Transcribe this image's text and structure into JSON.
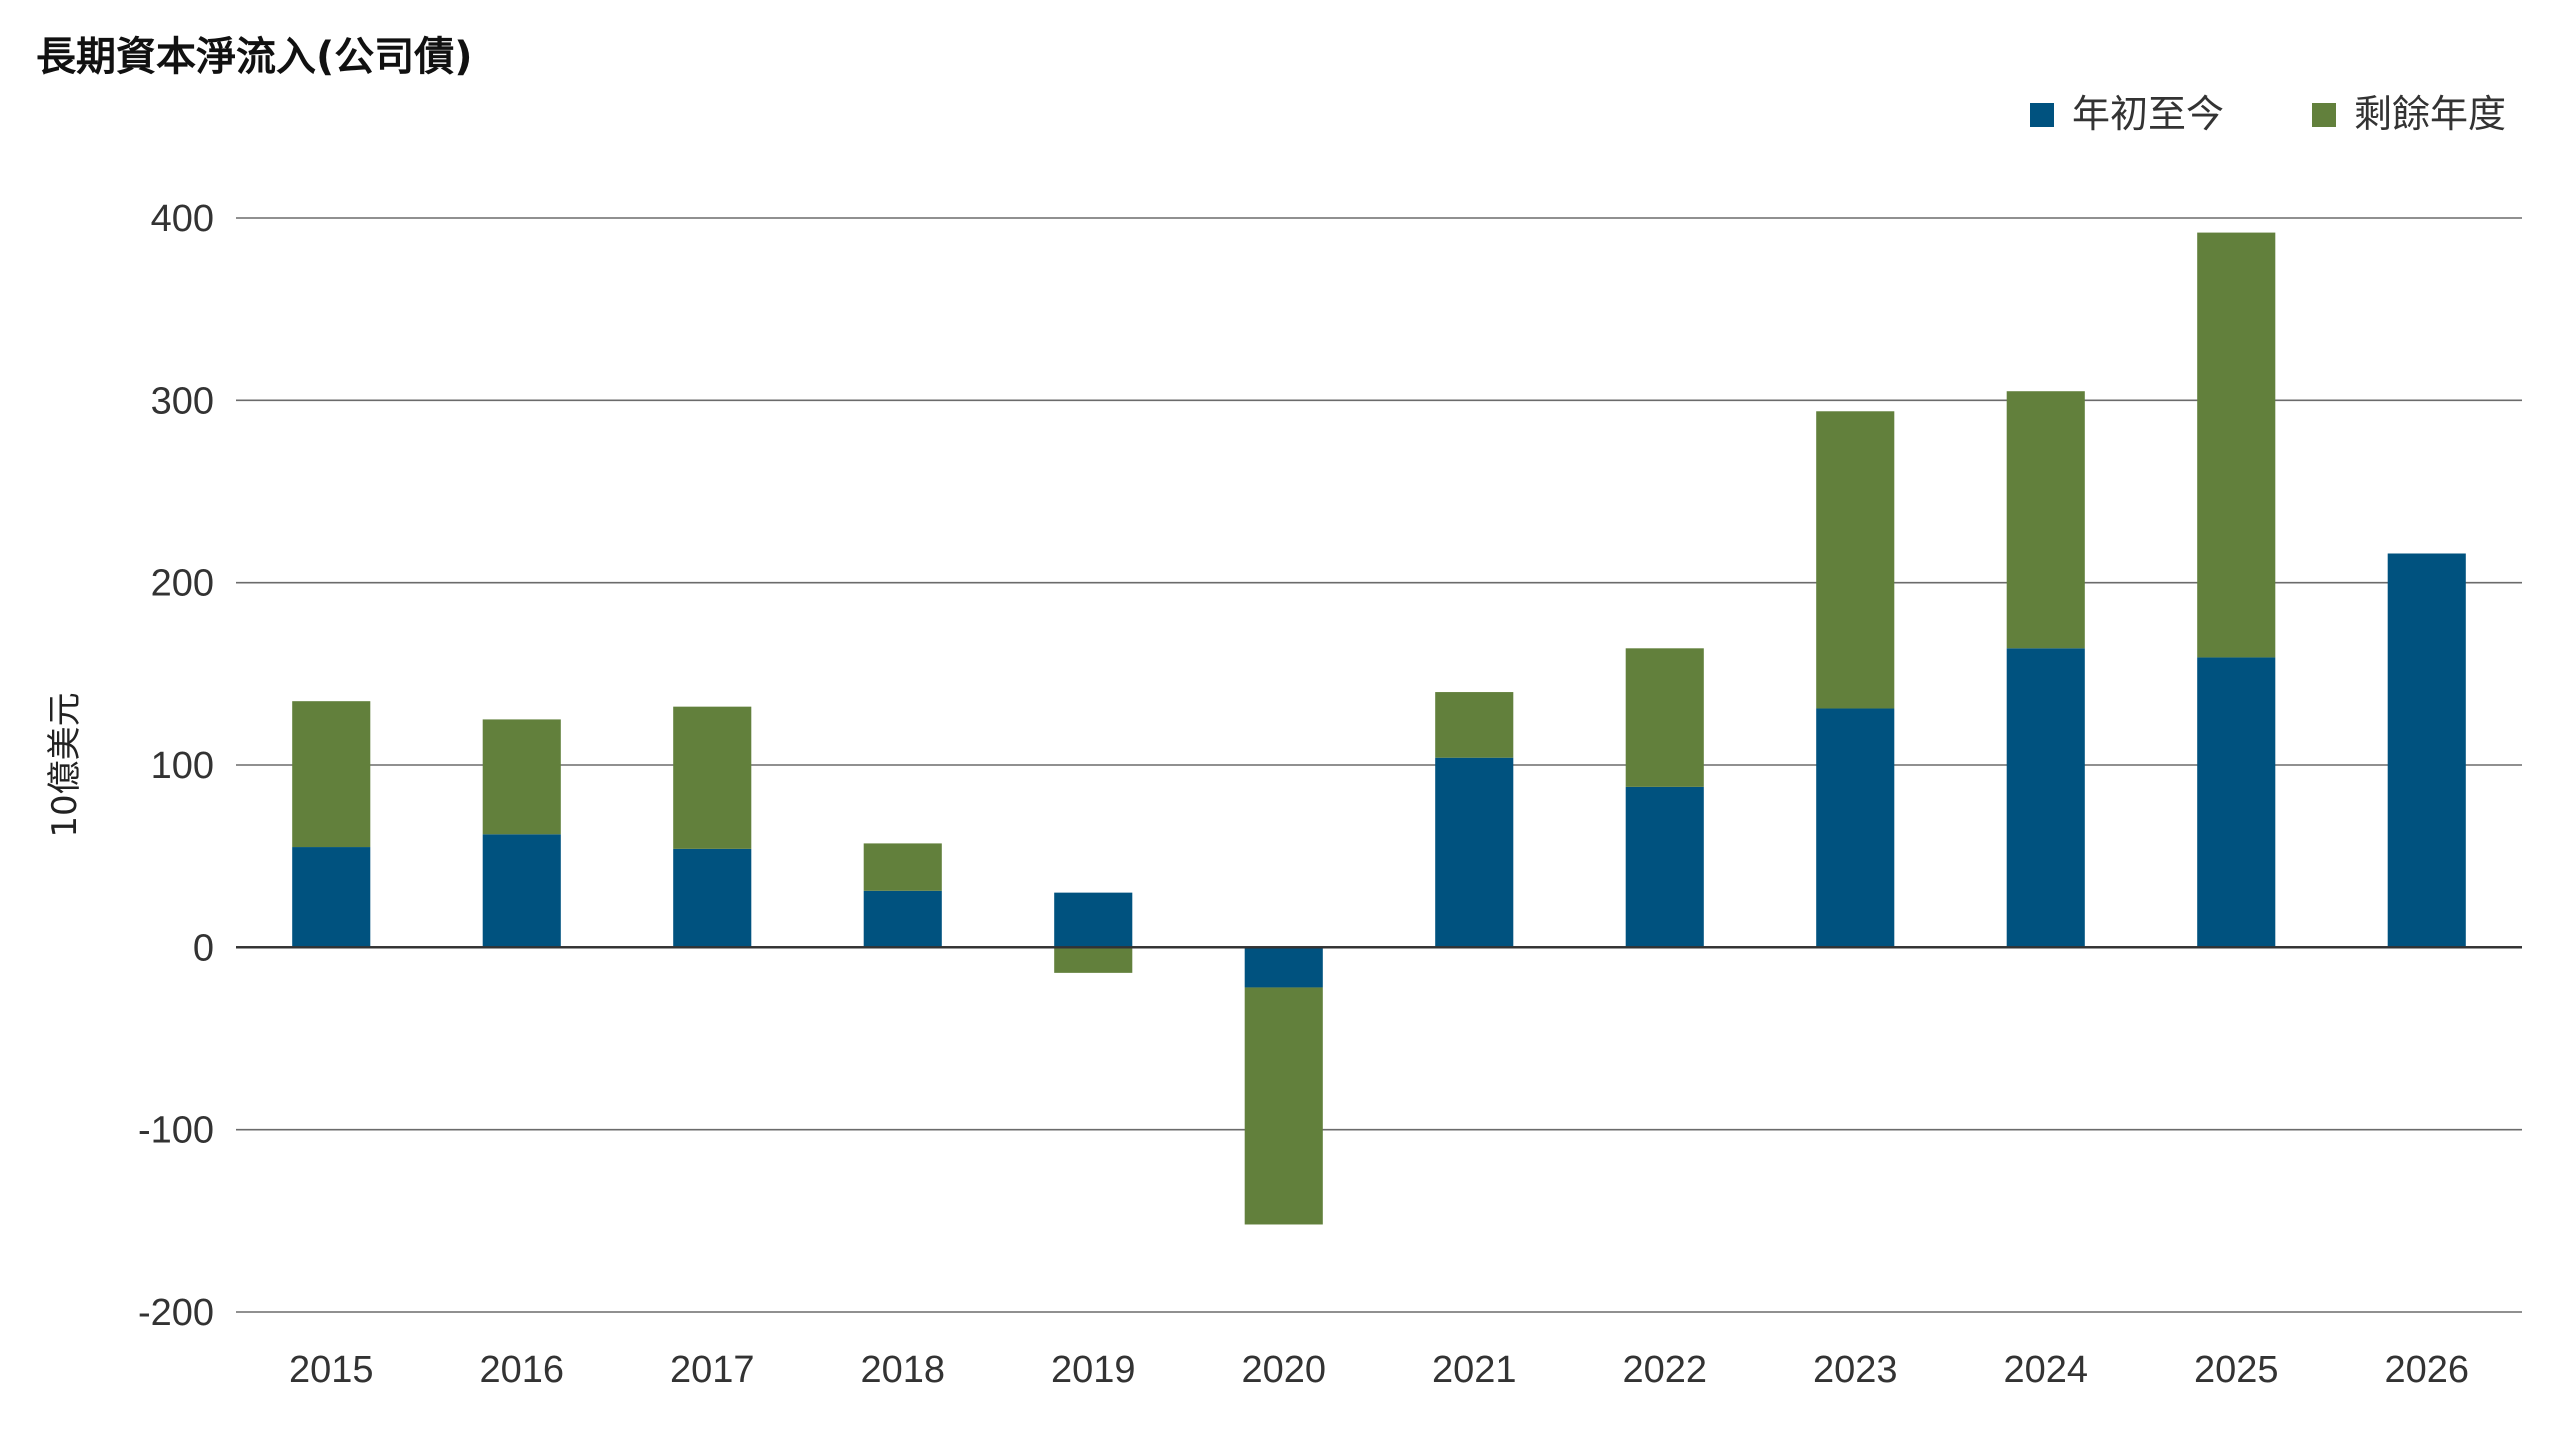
{
  "chart_data": {
    "type": "bar",
    "stacked": true,
    "title": "長期資本淨流入(公司債)",
    "ylabel": "10億美元",
    "xlabel": "",
    "ylim": [
      -200,
      400
    ],
    "yticks": [
      400,
      300,
      200,
      100,
      0,
      -100,
      -200
    ],
    "grid": true,
    "legend_position": "top-right",
    "categories": [
      "2015",
      "2016",
      "2017",
      "2018",
      "2019",
      "2020",
      "2021",
      "2022",
      "2023",
      "2024",
      "2025",
      "2026"
    ],
    "series": [
      {
        "name": "年初至今",
        "color": "#00527f",
        "values": [
          55,
          62,
          54,
          31,
          30,
          -22,
          104,
          88,
          131,
          164,
          159,
          216
        ]
      },
      {
        "name": "剩餘年度",
        "color": "#62803c",
        "values": [
          80,
          63,
          78,
          26,
          -14,
          -130,
          36,
          76,
          163,
          141,
          233,
          0
        ]
      }
    ]
  }
}
